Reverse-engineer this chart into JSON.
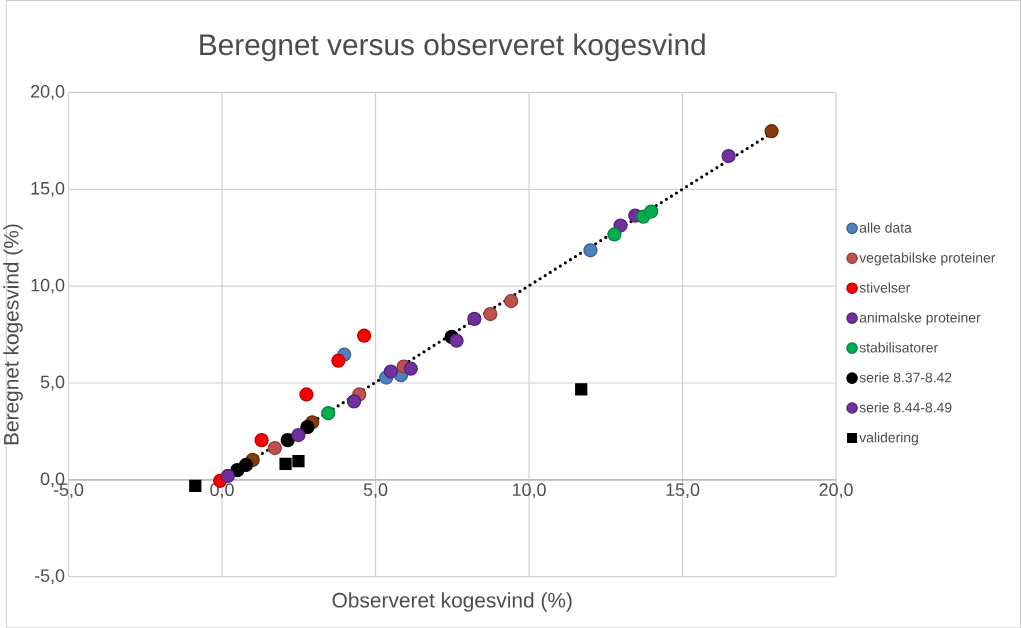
{
  "chart_data": {
    "type": "scatter",
    "title": "Beregnet versus observeret  kogesvind",
    "xlabel": "Observeret kogesvind (%)",
    "ylabel": "Beregnet kogesvind (%)",
    "xlim": [
      -5,
      20
    ],
    "ylim": [
      -5,
      20
    ],
    "xticks": [
      {
        "value": -5,
        "label": "-5,0"
      },
      {
        "value": 0,
        "label": "0,0"
      },
      {
        "value": 5,
        "label": "5,0"
      },
      {
        "value": 10,
        "label": "10,0"
      },
      {
        "value": 15,
        "label": "15,0"
      },
      {
        "value": 20,
        "label": "20,0"
      }
    ],
    "yticks": [
      {
        "value": -5,
        "label": "-5,0"
      },
      {
        "value": 0,
        "label": "0,0"
      },
      {
        "value": 5,
        "label": "5,0"
      },
      {
        "value": 10,
        "label": "10,0"
      },
      {
        "value": 15,
        "label": "15,0"
      },
      {
        "value": 20,
        "label": "20,0"
      }
    ],
    "grid": true,
    "legend": "right",
    "marker": "circle",
    "series": [
      {
        "type": "line",
        "color": "#000000",
        "marker": "none",
        "line_style": "dotted",
        "x": [
          0,
          17.9
        ],
        "values": [
          0.05,
          17.9
        ]
      },
      {
        "color": "#843c0c",
        "x": [
          17.9,
          2.94,
          1.0
        ],
        "values": [
          18.0,
          2.97,
          1.03
        ]
      },
      {
        "name": "alle data",
        "color": "#4f81bd",
        "x": [
          12.0,
          3.98,
          5.35,
          5.83
        ],
        "values": [
          11.85,
          6.46,
          5.28,
          5.4
        ]
      },
      {
        "name": "vegetabilske proteiner",
        "color": "#c0504d",
        "x": [
          9.42,
          8.74,
          1.72,
          4.47,
          5.92
        ],
        "values": [
          9.23,
          8.56,
          1.64,
          4.41,
          5.85
        ]
      },
      {
        "name": "stivelser",
        "color": "#ff0000",
        "x": [
          4.63,
          3.79,
          2.75,
          1.29,
          -0.06
        ],
        "values": [
          7.44,
          6.15,
          4.41,
          2.05,
          -0.05
        ]
      },
      {
        "name": "animalske proteiner",
        "color": "#7030a0",
        "x": [
          16.5,
          13.46,
          12.98,
          8.22,
          5.5
        ],
        "values": [
          16.72,
          13.64,
          13.13,
          8.31,
          5.59
        ]
      },
      {
        "name": "stabilisatorer",
        "color": "#00b050",
        "x": [
          12.78,
          13.72,
          13.98,
          3.46
        ],
        "values": [
          12.67,
          13.59,
          13.85,
          3.44
        ]
      },
      {
        "name": "serie 8.37-8.42",
        "color": "#000000",
        "x": [
          2.78,
          2.14,
          0.78,
          7.48,
          0.5
        ],
        "values": [
          2.72,
          2.05,
          0.77,
          7.38,
          0.5
        ]
      },
      {
        "name": "serie 8.44-8.49",
        "color": "#7030a0",
        "x": [
          6.15,
          7.64,
          4.3,
          2.49,
          0.19
        ],
        "values": [
          5.74,
          7.18,
          4.05,
          2.31,
          0.2
        ]
      },
      {
        "name": "validering",
        "color": "#000000",
        "marker": "square",
        "x": [
          11.7,
          2.07,
          2.49,
          -0.87
        ],
        "values": [
          4.67,
          0.82,
          0.97,
          -0.31
        ]
      }
    ]
  }
}
